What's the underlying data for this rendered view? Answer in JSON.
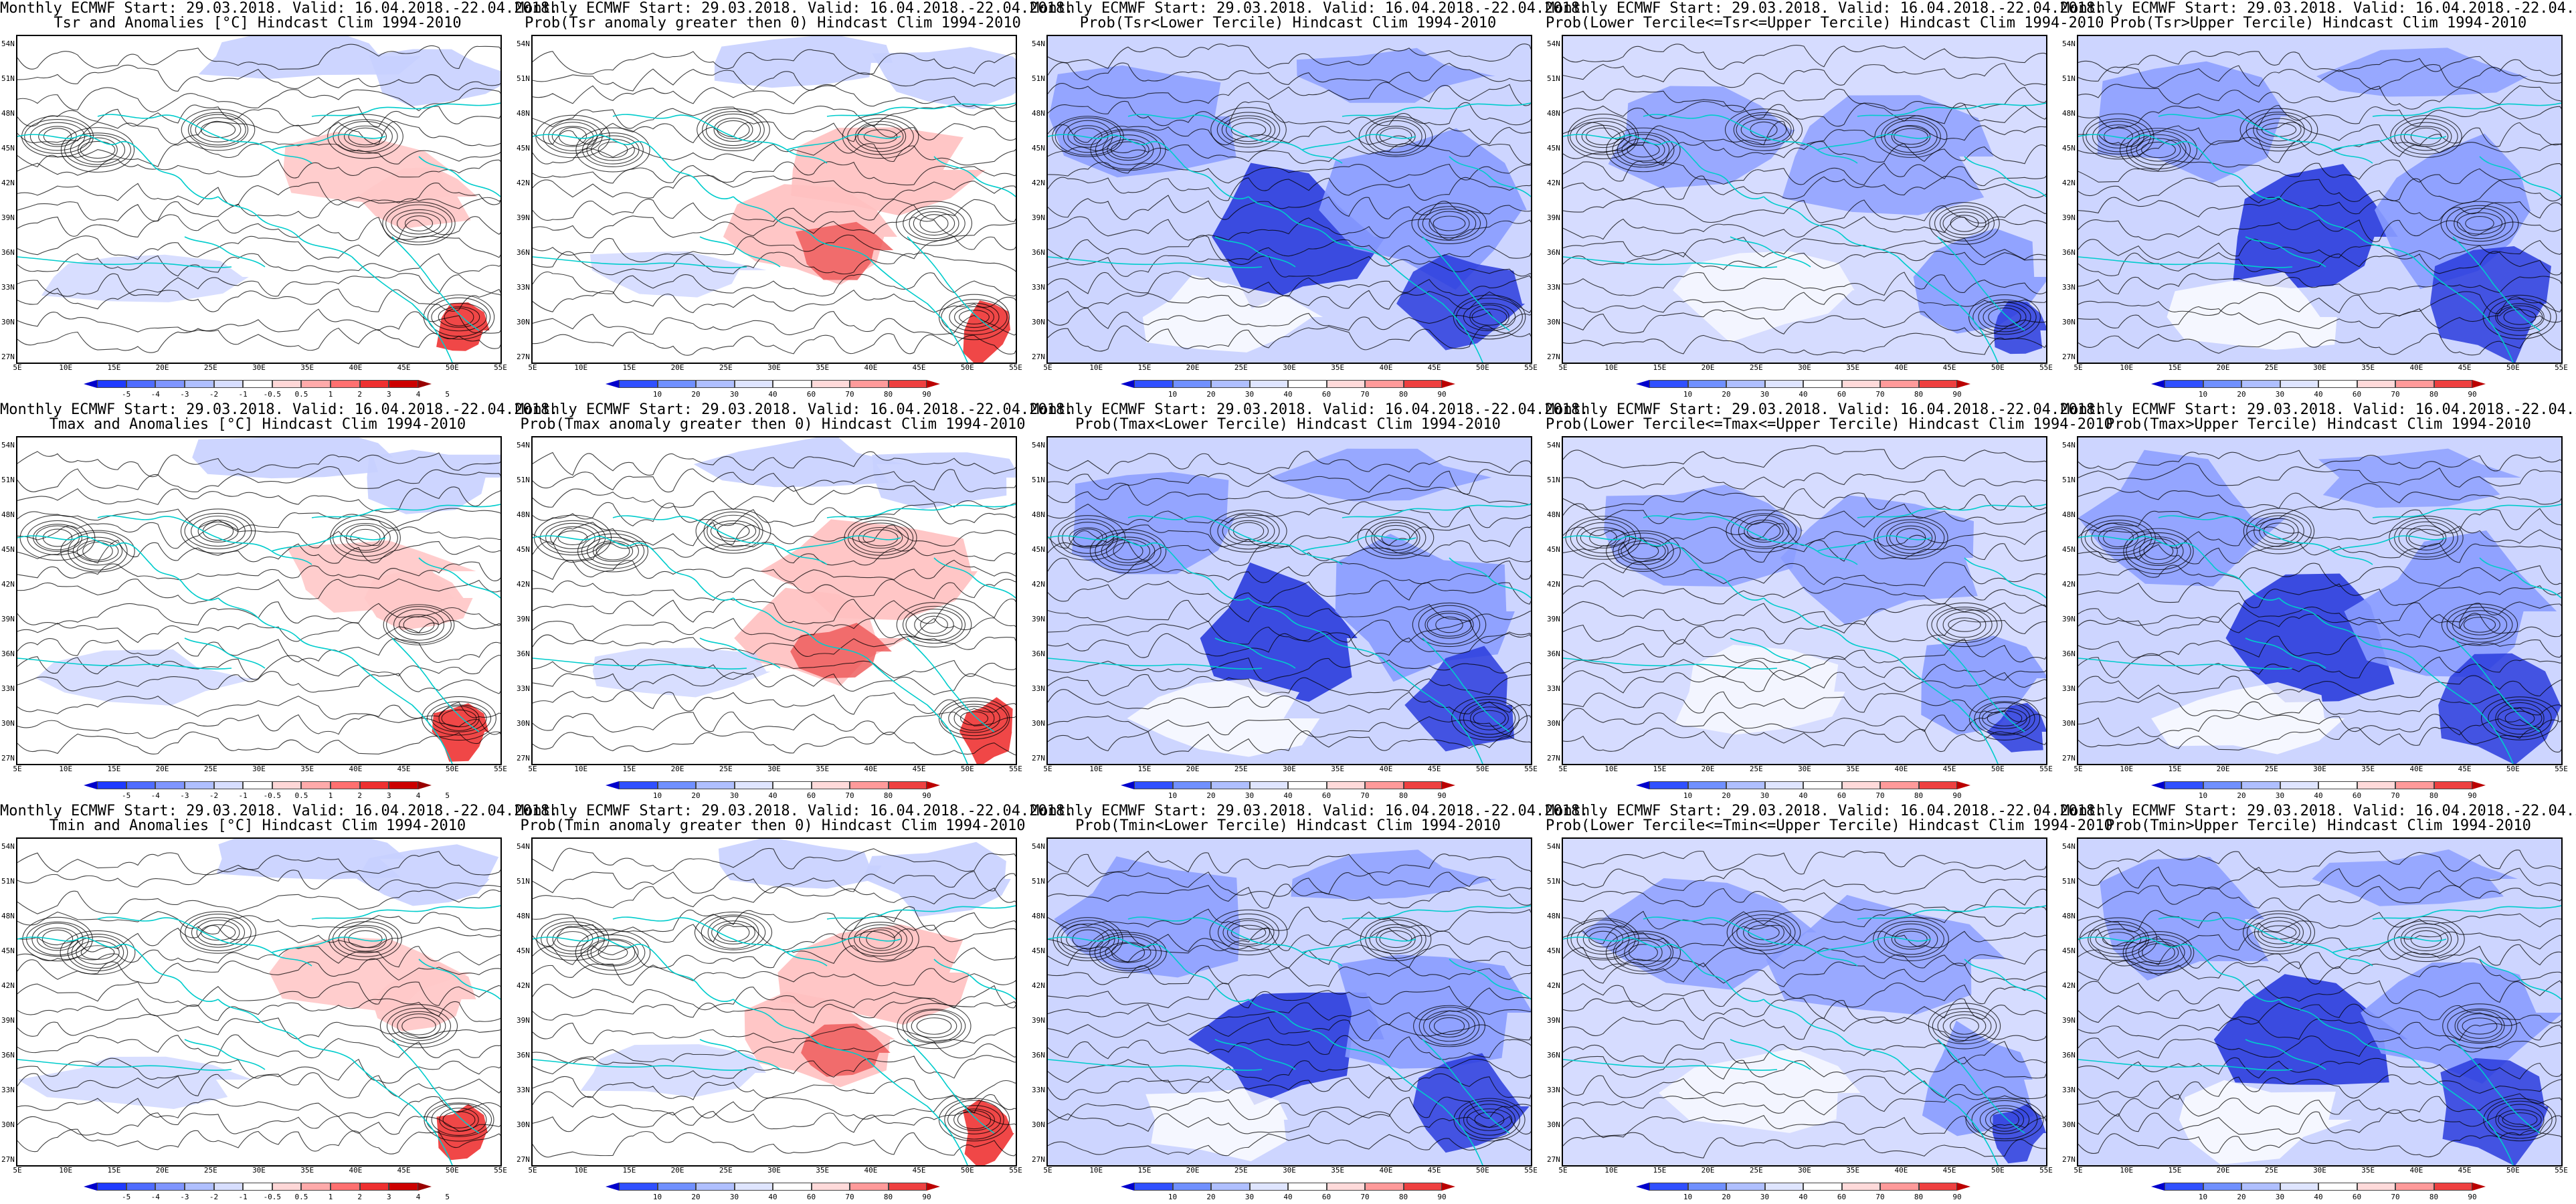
{
  "title_line1": "Monthly ECMWF Start: 29.03.2018. Valid: 16.04.2018.-22.04.2018.",
  "lat_labels": [
    "54N",
    "51N",
    "48N",
    "45N",
    "42N",
    "39N",
    "36N",
    "33N",
    "30N",
    "27N"
  ],
  "lon_labels": [
    "5E",
    "10E",
    "15E",
    "20E",
    "25E",
    "30E",
    "35E",
    "40E",
    "45E",
    "50E",
    "55E"
  ],
  "colorscales": {
    "anomaly": {
      "ticks": [
        "-5",
        "-4",
        "-3",
        "-2",
        "-1",
        "-0.5",
        "0.5",
        "1",
        "2",
        "3",
        "4",
        "5"
      ],
      "colors": [
        "#0000cc",
        "#1f3bff",
        "#4f6cff",
        "#7f95ff",
        "#afbfff",
        "#d7deff",
        "#ffffff",
        "#ffd7d7",
        "#ffaaaa",
        "#ff7070",
        "#ee3030",
        "#cc0000",
        "#990000"
      ]
    },
    "probability": {
      "ticks": [
        "10",
        "20",
        "30",
        "40",
        "60",
        "70",
        "80",
        "90"
      ],
      "colors": [
        "#0000cc",
        "#3050ff",
        "#7090ff",
        "#afbfff",
        "#dfe5ff",
        "#ffffff",
        "#ffdada",
        "#ff9a9a",
        "#ee4040",
        "#bb0000"
      ]
    }
  },
  "panels": [
    {
      "title2": "Tsr and Anomalies [°C] Hindcast Clim 1994-2010",
      "scale": "anomaly",
      "palette": "anom"
    },
    {
      "title2": "Prob(Tsr anomaly greater then 0) Hindcast Clim 1994-2010",
      "scale": "probability",
      "palette": "warm"
    },
    {
      "title2": "Prob(Tsr<Lower Tercile) Hindcast Clim 1994-2010",
      "scale": "probability",
      "palette": "deepblue"
    },
    {
      "title2": "Prob(Lower Tercile<=Tsr<=Upper Tercile) Hindcast Clim 1994-2010",
      "scale": "probability",
      "palette": "blue"
    },
    {
      "title2": "Prob(Tsr>Upper Tercile) Hindcast Clim 1994-2010",
      "scale": "probability",
      "palette": "deepblue"
    },
    {
      "title2": "Tmax and Anomalies [°C] Hindcast Clim 1994-2010",
      "scale": "anomaly",
      "palette": "anom"
    },
    {
      "title2": "Prob(Tmax anomaly greater then 0) Hindcast Clim 1994-2010",
      "scale": "probability",
      "palette": "warm"
    },
    {
      "title2": "Prob(Tmax<Lower Tercile) Hindcast Clim 1994-2010",
      "scale": "probability",
      "palette": "deepblue"
    },
    {
      "title2": "Prob(Lower Tercile<=Tmax<=Upper Tercile) Hindcast Clim 1994-2010",
      "scale": "probability",
      "palette": "blue"
    },
    {
      "title2": "Prob(Tmax>Upper Tercile) Hindcast Clim 1994-2010",
      "scale": "probability",
      "palette": "deepblue"
    },
    {
      "title2": "Tmin and Anomalies [°C] Hindcast Clim 1994-2010",
      "scale": "anomaly",
      "palette": "anom"
    },
    {
      "title2": "Prob(Tmin anomaly greater then 0) Hindcast Clim 1994-2010",
      "scale": "probability",
      "palette": "warm"
    },
    {
      "title2": "Prob(Tmin<Lower Tercile) Hindcast Clim 1994-2010",
      "scale": "probability",
      "palette": "deepblue"
    },
    {
      "title2": "Prob(Lower Tercile<=Tmin<=Upper Tercile) Hindcast Clim 1994-2010",
      "scale": "probability",
      "palette": "blue"
    },
    {
      "title2": "Prob(Tmin>Upper Tercile) Hindcast Clim 1994-2010",
      "scale": "probability",
      "palette": "deepblue"
    }
  ],
  "map_colors": {
    "coast": "#00cccc",
    "contour": "#000000",
    "anom_cool": "#c8d0ff",
    "anom_warm": "#ffc8c8",
    "anom_hot": "#ee3333",
    "warm_light": "#ffc0c0",
    "warm_strong": "#ee5555",
    "blue_light": "#c8d0ff",
    "blue_mid": "#8a9cff",
    "blue_dark": "#2a3cdd"
  }
}
